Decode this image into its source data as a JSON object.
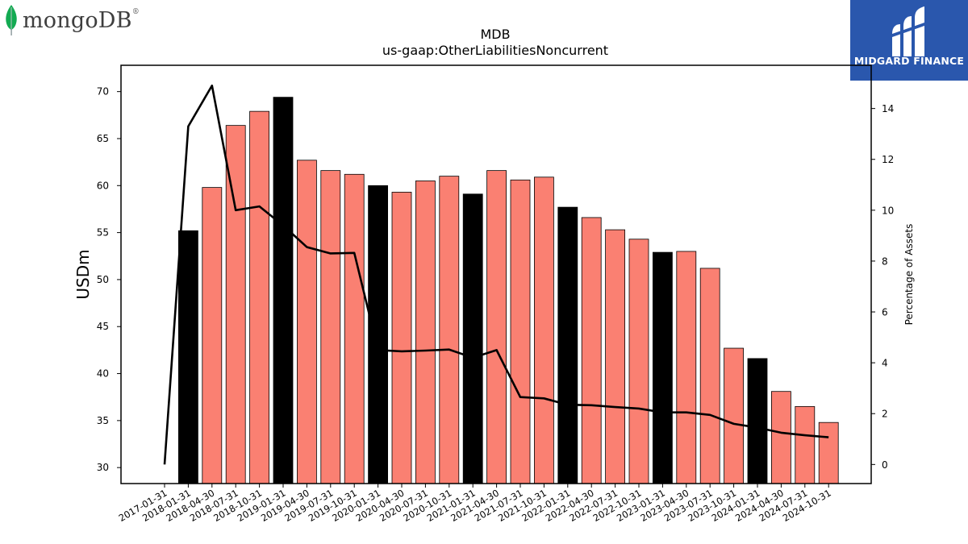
{
  "logos": {
    "left_text": "mongoDB",
    "left_mark": "®",
    "right_text": "MIDGARD FINANCE"
  },
  "chart_data": {
    "type": "bar",
    "title": "MDB",
    "subtitle": "us-gaap:OtherLiabilitiesNoncurrent",
    "ylabel": "USDm",
    "y2label": "Percentage of Assets",
    "ylim": [
      28.3,
      72.8
    ],
    "y2lim": [
      -0.75,
      15.7
    ],
    "yticks": [
      30,
      35,
      40,
      45,
      50,
      55,
      60,
      65,
      70
    ],
    "y2ticks": [
      0,
      2,
      4,
      6,
      8,
      10,
      12,
      14
    ],
    "categories": [
      "2017-01-31",
      "2018-01-31",
      "2018-04-30",
      "2018-07-31",
      "2018-10-31",
      "2019-01-31",
      "2019-04-30",
      "2019-07-31",
      "2019-10-31",
      "2020-01-31",
      "2020-04-30",
      "2020-07-31",
      "2020-10-31",
      "2021-01-31",
      "2021-04-30",
      "2021-07-31",
      "2021-10-31",
      "2022-01-31",
      "2022-04-30",
      "2022-07-31",
      "2022-10-31",
      "2023-01-31",
      "2023-04-30",
      "2023-07-31",
      "2023-10-31",
      "2024-01-31",
      "2024-04-30",
      "2024-07-31",
      "2024-10-31"
    ],
    "series": [
      {
        "type": "bar",
        "values": [
          null,
          55.2,
          59.8,
          66.4,
          67.9,
          69.4,
          62.7,
          61.6,
          61.2,
          60.0,
          59.3,
          60.5,
          61.0,
          59.1,
          61.6,
          60.6,
          60.9,
          57.7,
          56.6,
          55.3,
          54.3,
          52.9,
          53.0,
          51.2,
          42.7,
          41.6,
          38.1,
          36.5,
          34.8
        ],
        "colors": {
          "annual": "#000000",
          "quarterly": "#fa8072"
        },
        "annual_flags": [
          false,
          true,
          false,
          false,
          false,
          true,
          false,
          false,
          false,
          true,
          false,
          false,
          false,
          true,
          false,
          false,
          false,
          true,
          false,
          false,
          false,
          true,
          false,
          false,
          false,
          true,
          false,
          false,
          false
        ]
      },
      {
        "type": "line",
        "axis": "secondary",
        "color": "#000000",
        "values": [
          0.0,
          13.3,
          14.9,
          10.0,
          10.15,
          9.4,
          8.55,
          8.3,
          8.32,
          4.5,
          4.45,
          4.48,
          4.52,
          4.2,
          4.5,
          2.65,
          2.6,
          2.35,
          2.33,
          2.26,
          2.2,
          2.05,
          2.05,
          1.95,
          1.6,
          1.45,
          1.25,
          1.15,
          1.07
        ]
      }
    ],
    "grid": false,
    "legend": "none"
  }
}
